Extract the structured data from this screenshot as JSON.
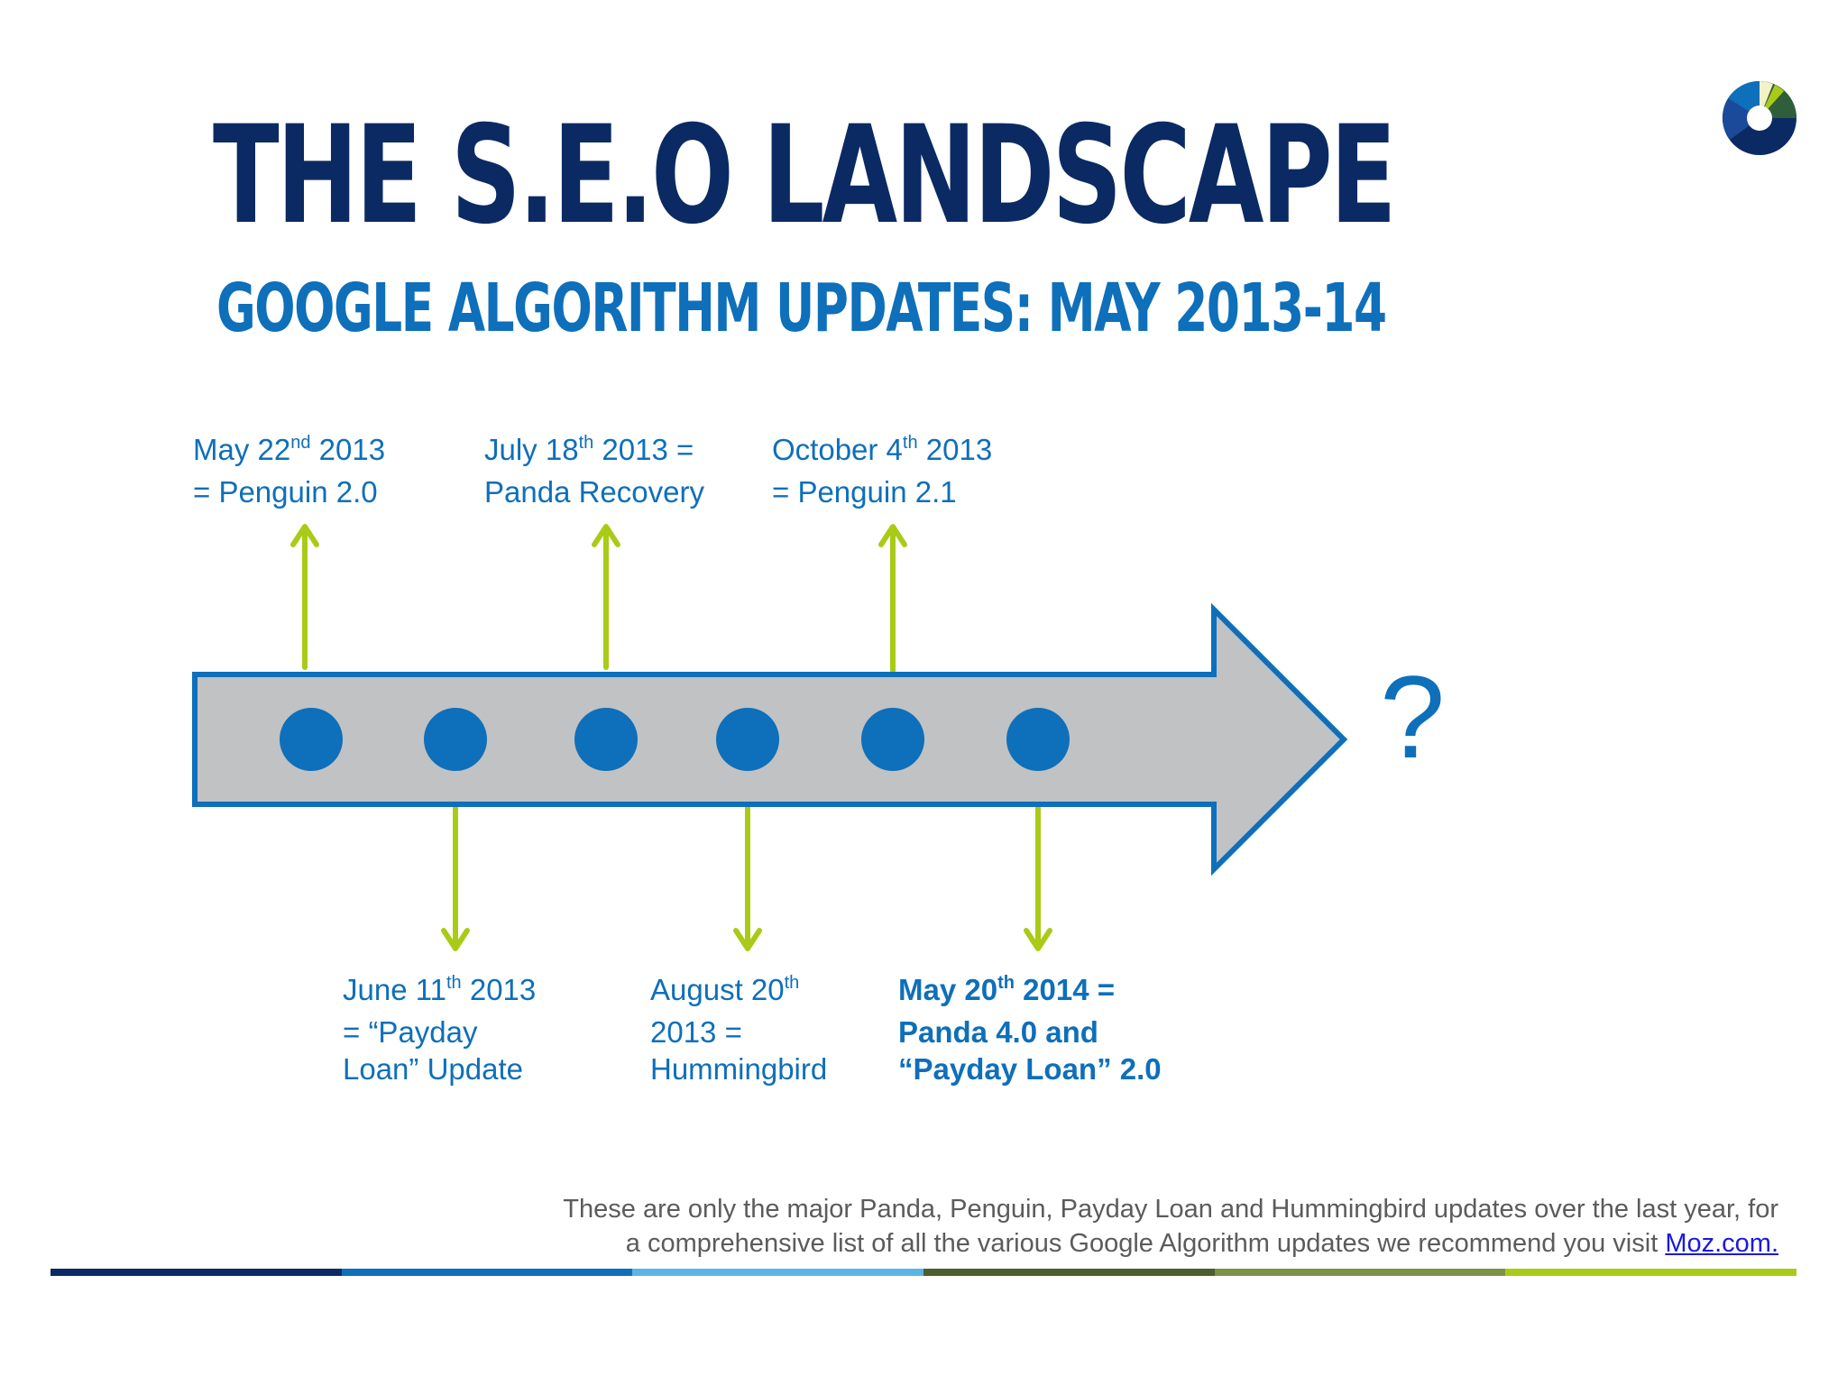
{
  "slide": {
    "title": "THE S.E.O LANDSCAPE",
    "subtitle": "GOOGLE ALGORITHM UPDATES: MAY 2013-14"
  },
  "timeline": {
    "question_mark": "?",
    "events_above": [
      {
        "pre": "May 22",
        "sup": "nd",
        "post": " 2013",
        "line2": "= Penguin 2.0",
        "line3": ""
      },
      {
        "pre": "July 18",
        "sup": "th",
        "post": " 2013 =",
        "line2": "Panda Recovery",
        "line3": ""
      },
      {
        "pre": "October 4",
        "sup": "th",
        "post": " 2013",
        "line2": "= Penguin 2.1",
        "line3": ""
      }
    ],
    "events_below": [
      {
        "pre": "June 11",
        "sup": "th",
        "post": " 2013",
        "line2": "= “Payday",
        "line3": "Loan” Update"
      },
      {
        "pre": "August 20",
        "sup": "th",
        "post": "",
        "line2": "2013 =",
        "line3": "Hummingbird"
      },
      {
        "pre": "May 20",
        "sup": "th",
        "post": " 2014 =",
        "line2": "Panda 4.0 and",
        "line3": "“Payday Loan” 2.0"
      }
    ]
  },
  "footnote": {
    "line1": "These are only the major Panda, Penguin, Payday Loan and Hummingbird updates over the last year, for",
    "line2": "a comprehensive list of all the various Google Algorithm updates we recommend you visit ",
    "link": "Moz.com."
  },
  "colors": {
    "title": "#0b2a63",
    "accent_blue": "#0e6fba",
    "arrow_fill": "#c1c2c4",
    "connector_green": "#a9cb17",
    "bottom_bar": [
      "#0b2a63",
      "#0e6fba",
      "#5bb4e5",
      "#4c5d2e",
      "#7b9347",
      "#a9cb17"
    ]
  }
}
